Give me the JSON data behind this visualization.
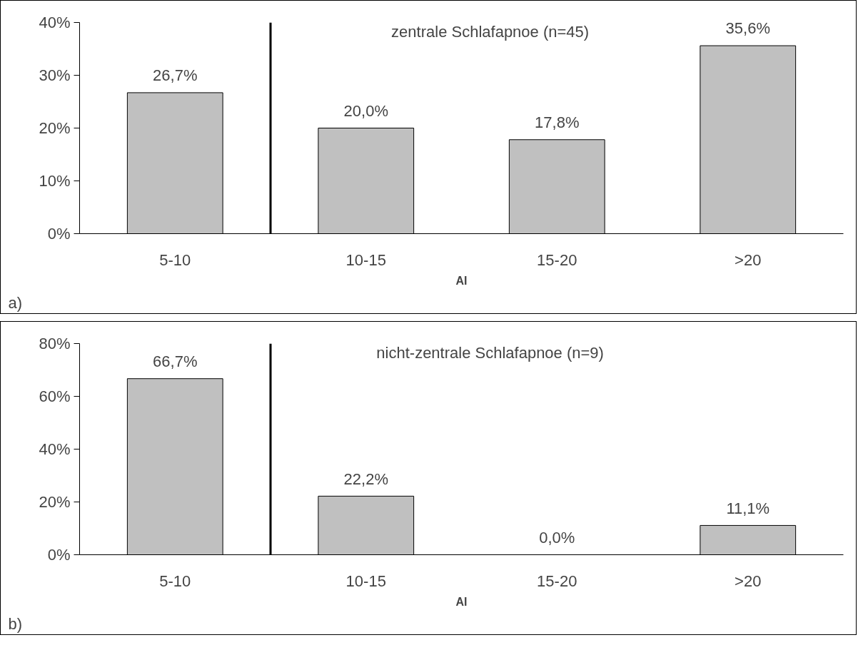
{
  "chart_data": [
    {
      "type": "bar",
      "title": "zentrale Schlafapnoe (n=45)",
      "xlabel": "AI",
      "categories": [
        "5-10",
        "10-15",
        "15-20",
        ">20"
      ],
      "values": [
        26.7,
        20.0,
        17.8,
        35.6
      ],
      "value_labels": [
        "26,7%",
        "20,0%",
        "17,8%",
        "35,6%"
      ],
      "color": "#c0c0c0",
      "ylim": [
        0,
        40
      ],
      "yticks": [
        {
          "value": 0,
          "label": "0%"
        },
        {
          "value": 10,
          "label": "10%"
        },
        {
          "value": 20,
          "label": "20%"
        },
        {
          "value": 30,
          "label": "30%"
        },
        {
          "value": 40,
          "label": "40%"
        }
      ],
      "grid": false,
      "annotations": [
        "a)"
      ]
    },
    {
      "type": "bar",
      "title": "nicht-zentrale Schlafapnoe (n=9)",
      "xlabel": "AI",
      "categories": [
        "5-10",
        "10-15",
        "15-20",
        ">20"
      ],
      "values": [
        66.7,
        22.2,
        0.0,
        11.1
      ],
      "value_labels": [
        "66,7%",
        "22,2%",
        "0,0%",
        "11,1%"
      ],
      "color": "#c0c0c0",
      "ylim": [
        0,
        80
      ],
      "yticks": [
        {
          "value": 0,
          "label": "0%"
        },
        {
          "value": 20,
          "label": "20%"
        },
        {
          "value": 40,
          "label": "40%"
        },
        {
          "value": 60,
          "label": "60%"
        },
        {
          "value": 80,
          "label": "80%"
        }
      ],
      "grid": false,
      "annotations": [
        "b)"
      ]
    }
  ]
}
